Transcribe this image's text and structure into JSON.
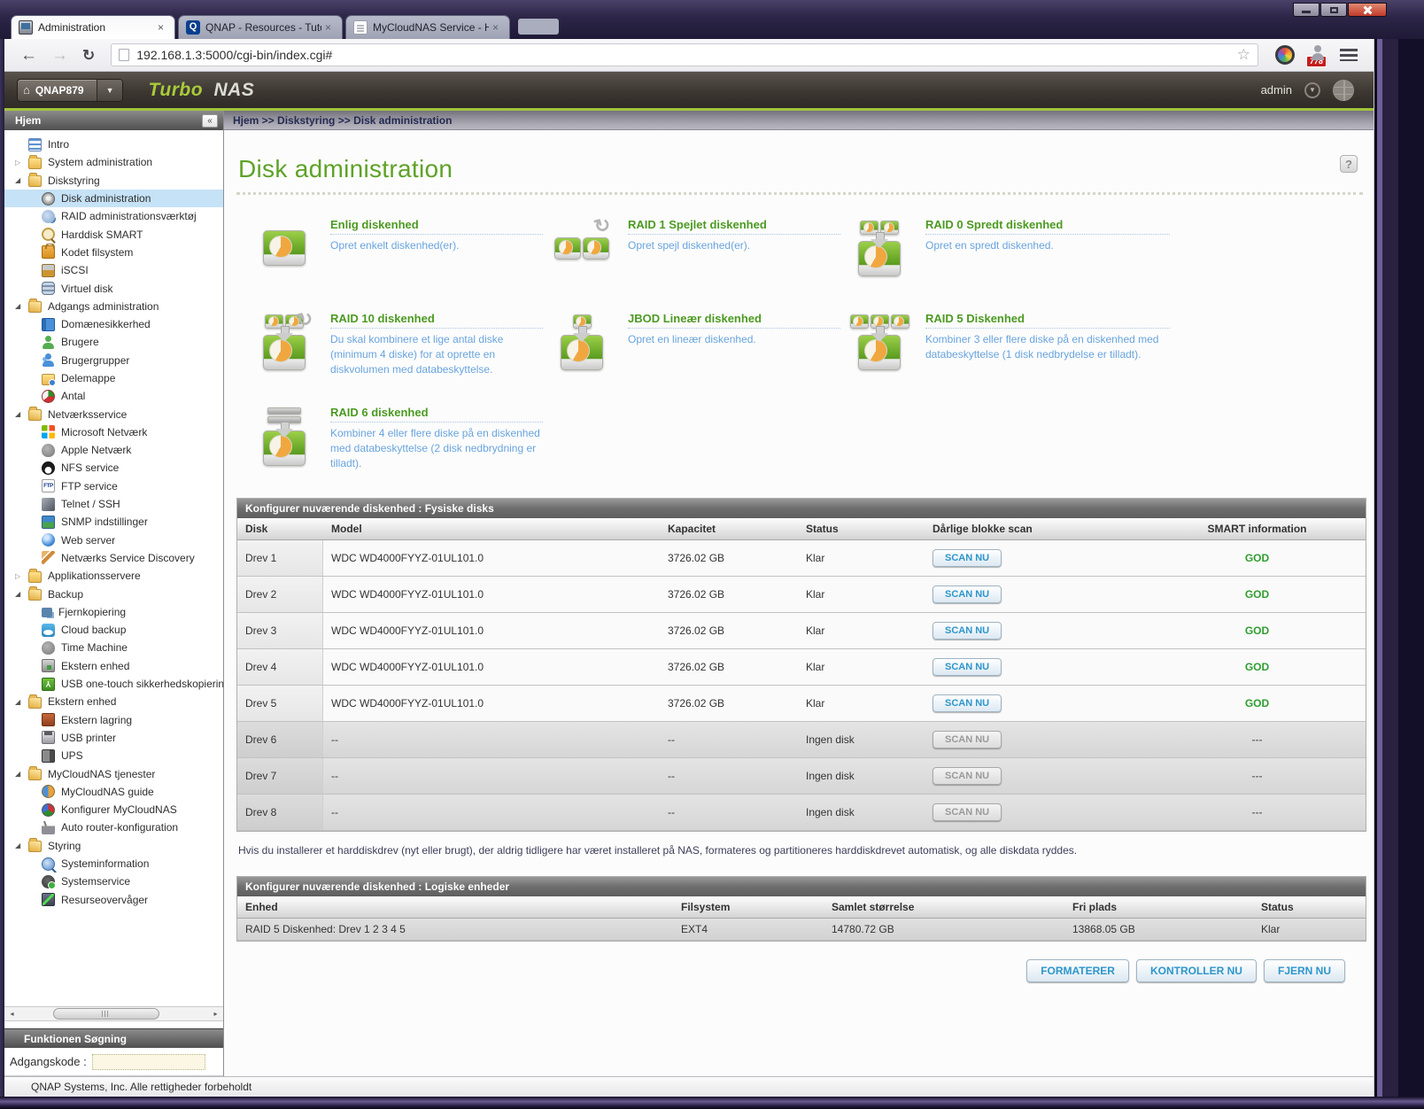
{
  "window": {
    "buttons": [
      "minimize",
      "maximize",
      "close"
    ]
  },
  "browser": {
    "tabs": [
      {
        "title": "Administration",
        "active": true
      },
      {
        "title": "QNAP - Resources - Tutor",
        "active": false
      },
      {
        "title": "MyCloudNAS Service - Hc",
        "active": false
      }
    ],
    "url": "192.168.1.3:5000/cgi-bin/index.cgi#",
    "badge_count": "778"
  },
  "app_header": {
    "device_name": "QNAP879",
    "brand_turbo": "Turbo",
    "brand_nas": "NAS",
    "user": "admin"
  },
  "sidebar": {
    "title": "Hjem",
    "search_title": "Funktionen Søgning",
    "password_label": "Adgangskode :",
    "password_value": "",
    "items": [
      {
        "label": "Intro",
        "level": 0,
        "icon": "intro-icon",
        "expander": null,
        "selected": false
      },
      {
        "label": "System administration",
        "level": 0,
        "icon": "folder-icon",
        "expander": "closed",
        "selected": false
      },
      {
        "label": "Diskstyring",
        "level": 0,
        "icon": "folder-open-icon",
        "expander": "open",
        "selected": false
      },
      {
        "label": "Disk administration",
        "level": 1,
        "icon": "disk-admin-icon",
        "expander": null,
        "selected": true
      },
      {
        "label": "RAID administrationsværktøj",
        "level": 1,
        "icon": "raid-tool-icon",
        "expander": null,
        "selected": false
      },
      {
        "label": "Harddisk SMART",
        "level": 1,
        "icon": "smart-icon",
        "expander": null,
        "selected": false
      },
      {
        "label": "Kodet filsystem",
        "level": 1,
        "icon": "encrypted-fs-icon",
        "expander": null,
        "selected": false
      },
      {
        "label": "iSCSI",
        "level": 1,
        "icon": "iscsi-icon",
        "expander": null,
        "selected": false
      },
      {
        "label": "Virtuel disk",
        "level": 1,
        "icon": "virtual-disk-icon",
        "expander": null,
        "selected": false
      },
      {
        "label": "Adgangs administration",
        "level": 0,
        "icon": "folder-open-icon",
        "expander": "open",
        "selected": false
      },
      {
        "label": "Domænesikkerhed",
        "level": 1,
        "icon": "domain-security-icon",
        "expander": null,
        "selected": false
      },
      {
        "label": "Brugere",
        "level": 1,
        "icon": "users-icon",
        "expander": null,
        "selected": false
      },
      {
        "label": "Brugergrupper",
        "level": 1,
        "icon": "user-groups-icon",
        "expander": null,
        "selected": false
      },
      {
        "label": "Delemappe",
        "level": 1,
        "icon": "share-folder-icon",
        "expander": null,
        "selected": false
      },
      {
        "label": "Antal",
        "level": 1,
        "icon": "quota-icon",
        "expander": null,
        "selected": false
      },
      {
        "label": "Netværksservice",
        "level": 0,
        "icon": "folder-open-icon",
        "expander": "open",
        "selected": false
      },
      {
        "label": "Microsoft Netværk",
        "level": 1,
        "icon": "ms-network-icon",
        "expander": null,
        "selected": false
      },
      {
        "label": "Apple Netværk",
        "level": 1,
        "icon": "apple-network-icon",
        "expander": null,
        "selected": false
      },
      {
        "label": "NFS service",
        "level": 1,
        "icon": "nfs-icon",
        "expander": null,
        "selected": false
      },
      {
        "label": "FTP service",
        "level": 1,
        "icon": "ftp-icon",
        "expander": null,
        "selected": false
      },
      {
        "label": "Telnet / SSH",
        "level": 1,
        "icon": "telnet-icon",
        "expander": null,
        "selected": false
      },
      {
        "label": "SNMP indstillinger",
        "level": 1,
        "icon": "snmp-icon",
        "expander": null,
        "selected": false
      },
      {
        "label": "Web server",
        "level": 1,
        "icon": "web-server-icon",
        "expander": null,
        "selected": false
      },
      {
        "label": "Netværks Service Discovery",
        "level": 1,
        "icon": "service-discovery-icon",
        "expander": null,
        "selected": false
      },
      {
        "label": "Applikationsservere",
        "level": 0,
        "icon": "folder-icon",
        "expander": "closed",
        "selected": false
      },
      {
        "label": "Backup",
        "level": 0,
        "icon": "folder-open-icon",
        "expander": "open",
        "selected": false
      },
      {
        "label": "Fjernkopiering",
        "level": 1,
        "icon": "remote-replication-icon",
        "expander": null,
        "selected": false
      },
      {
        "label": "Cloud backup",
        "level": 1,
        "icon": "cloud-backup-icon",
        "expander": null,
        "selected": false
      },
      {
        "label": "Time Machine",
        "level": 1,
        "icon": "time-machine-icon",
        "expander": null,
        "selected": false
      },
      {
        "label": "Ekstern enhed",
        "level": 1,
        "icon": "external-device-icon",
        "expander": null,
        "selected": false
      },
      {
        "label": "USB one-touch sikkerhedskopiering",
        "level": 1,
        "icon": "usb-backup-icon",
        "expander": null,
        "selected": false
      },
      {
        "label": "Ekstern enhed",
        "level": 0,
        "icon": "folder-open-icon",
        "expander": "open",
        "selected": false
      },
      {
        "label": "Ekstern lagring",
        "level": 1,
        "icon": "external-storage-icon",
        "expander": null,
        "selected": false
      },
      {
        "label": "USB printer",
        "level": 1,
        "icon": "usb-printer-icon",
        "expander": null,
        "selected": false
      },
      {
        "label": "UPS",
        "level": 1,
        "icon": "ups-icon",
        "expander": null,
        "selected": false
      },
      {
        "label": "MyCloudNAS tjenester",
        "level": 0,
        "icon": "folder-open-icon",
        "expander": "open",
        "selected": false
      },
      {
        "label": "MyCloudNAS guide",
        "level": 1,
        "icon": "mycloudnas-guide-icon",
        "expander": null,
        "selected": false
      },
      {
        "label": "Konfigurer MyCloudNAS",
        "level": 1,
        "icon": "mycloudnas-config-icon",
        "expander": null,
        "selected": false
      },
      {
        "label": "Auto router-konfiguration",
        "level": 1,
        "icon": "router-icon",
        "expander": null,
        "selected": false
      },
      {
        "label": "Styring",
        "level": 0,
        "icon": "folder-open-icon",
        "expander": "open",
        "selected": false
      },
      {
        "label": "Systeminformation",
        "level": 1,
        "icon": "system-info-icon",
        "expander": null,
        "selected": false
      },
      {
        "label": "Systemservice",
        "level": 1,
        "icon": "system-service-icon",
        "expander": null,
        "selected": false
      },
      {
        "label": "Resurseovervåger",
        "level": 1,
        "icon": "resource-monitor-icon",
        "expander": null,
        "selected": false
      }
    ]
  },
  "breadcrumb": "Hjem >> Diskstyring >> Disk administration",
  "page": {
    "title": "Disk administration"
  },
  "options": [
    {
      "title": "Enlig diskenhed",
      "desc": "Opret enkelt diskenhed(er).",
      "icon": "single-disk-icon"
    },
    {
      "title": "RAID 1 Spejlet diskenhed",
      "desc": "Opret spejl diskenhed(er).",
      "icon": "raid1-mirror-icon"
    },
    {
      "title": "RAID 0 Spredt diskenhed",
      "desc": "Opret en spredt diskenhed.",
      "icon": "raid0-stripe-icon"
    },
    {
      "title": "RAID 10 diskenhed",
      "desc": "Du skal kombinere et lige antal diske (minimum 4 diske) for at oprette en diskvolumen med databeskyttelse.",
      "icon": "raid10-icon"
    },
    {
      "title": "JBOD Lineær diskenhed",
      "desc": "Opret en lineær diskenhed.",
      "icon": "jbod-linear-icon"
    },
    {
      "title": "RAID 5 Diskenhed",
      "desc": "Kombiner 3 eller flere diske på en diskenhed med databeskyttelse (1 disk nedbrydelse er tilladt).",
      "icon": "raid5-icon"
    },
    {
      "title": "RAID 6 diskenhed",
      "desc": "Kombiner 4 eller flere diske på en diskenhed med databeskyttelse (2 disk nedbrydning er tilladt).",
      "icon": "raid6-icon"
    }
  ],
  "physical": {
    "header": "Konfigurer nuværende diskenhed : Fysiske disks",
    "columns": [
      "Disk",
      "Model",
      "Kapacitet",
      "Status",
      "Dårlige blokke scan",
      "SMART information"
    ],
    "rows": [
      {
        "disk": "Drev 1",
        "model": "WDC WD4000FYYZ-01UL101.0",
        "capacity": "3726.02 GB",
        "status": "Klar",
        "scan_label": "SCAN NU",
        "smart": "GOD",
        "has_disk": true
      },
      {
        "disk": "Drev 2",
        "model": "WDC WD4000FYYZ-01UL101.0",
        "capacity": "3726.02 GB",
        "status": "Klar",
        "scan_label": "SCAN NU",
        "smart": "GOD",
        "has_disk": true
      },
      {
        "disk": "Drev 3",
        "model": "WDC WD4000FYYZ-01UL101.0",
        "capacity": "3726.02 GB",
        "status": "Klar",
        "scan_label": "SCAN NU",
        "smart": "GOD",
        "has_disk": true
      },
      {
        "disk": "Drev 4",
        "model": "WDC WD4000FYYZ-01UL101.0",
        "capacity": "3726.02 GB",
        "status": "Klar",
        "scan_label": "SCAN NU",
        "smart": "GOD",
        "has_disk": true
      },
      {
        "disk": "Drev 5",
        "model": "WDC WD4000FYYZ-01UL101.0",
        "capacity": "3726.02 GB",
        "status": "Klar",
        "scan_label": "SCAN NU",
        "smart": "GOD",
        "has_disk": true
      },
      {
        "disk": "Drev 6",
        "model": "--",
        "capacity": "--",
        "status": "Ingen disk",
        "scan_label": "SCAN NU",
        "smart": "---",
        "has_disk": false
      },
      {
        "disk": "Drev 7",
        "model": "--",
        "capacity": "--",
        "status": "Ingen disk",
        "scan_label": "SCAN NU",
        "smart": "---",
        "has_disk": false
      },
      {
        "disk": "Drev 8",
        "model": "--",
        "capacity": "--",
        "status": "Ingen disk",
        "scan_label": "SCAN NU",
        "smart": "---",
        "has_disk": false
      }
    ]
  },
  "note": "Hvis du installerer et harddiskdrev (nyt eller brugt), der aldrig tidligere har været installeret på NAS, formateres og partitioneres harddiskdrevet automatisk, og alle diskdata ryddes.",
  "logical": {
    "header": "Konfigurer nuværende diskenhed : Logiske enheder",
    "columns": [
      "Enhed",
      "Filsystem",
      "Samlet størrelse",
      "Fri plads",
      "Status"
    ],
    "rows": [
      {
        "unit": "RAID 5 Diskenhed: Drev 1 2 3 4 5",
        "filesystem": "EXT4",
        "total": "14780.72 GB",
        "free": "13868.05 GB",
        "status": "Klar"
      }
    ]
  },
  "actions": {
    "format": "FORMATERER",
    "check": "KONTROLLER NU",
    "remove": "FJERN NU"
  },
  "footer": "QNAP Systems, Inc. Alle rettigheder forbeholdt",
  "colors": {
    "accent_green": "#a3c43c",
    "title_green": "#5ea227",
    "desc_blue": "#69a4de",
    "good_green": "#2f9e2f",
    "button_blue": "#2d96cc"
  }
}
